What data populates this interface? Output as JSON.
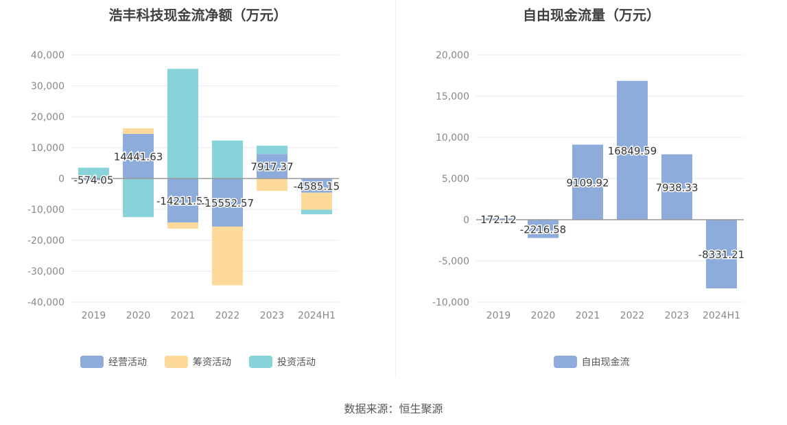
{
  "source_text": "数据来源：恒生聚源",
  "chart_data": [
    {
      "type": "bar",
      "stacked": true,
      "title": "浩丰科技现金流净额（万元）",
      "categories": [
        "2019",
        "2020",
        "2021",
        "2022",
        "2023",
        "2024H1"
      ],
      "ylim": [
        -40000,
        40000
      ],
      "yticks": [
        40000,
        30000,
        20000,
        10000,
        0,
        -10000,
        -20000,
        -30000,
        -40000
      ],
      "ytick_labels": [
        "40,000",
        "30,000",
        "20,000",
        "10,000",
        "0",
        "-10,000",
        "-20,000",
        "-30,000",
        "-40,000"
      ],
      "legend_position": "bottom",
      "grid": true,
      "series": [
        {
          "name": "经营活动",
          "color": "#8eacdb",
          "values": [
            -574.05,
            14441.63,
            -14211.53,
            -15552.57,
            7917.37,
            -4585.15
          ]
        },
        {
          "name": "筹资活动",
          "color": "#fdd99b",
          "values": [
            0,
            1800,
            -2000,
            -19000,
            -4000,
            -5500
          ]
        },
        {
          "name": "投资活动",
          "color": "#88d3d9",
          "values": [
            3500,
            -12500,
            35500,
            12300,
            2700,
            -1500
          ]
        }
      ],
      "data_labels": [
        "-574.05",
        "14441.63",
        "-14211.53",
        "-15552.57",
        "7917.37",
        "-4585.15"
      ],
      "label_series": 0
    },
    {
      "type": "bar",
      "title": "自由现金流量（万元）",
      "categories": [
        "2019",
        "2020",
        "2021",
        "2022",
        "2023",
        "2024H1"
      ],
      "ylim": [
        -10000,
        20000
      ],
      "yticks": [
        20000,
        15000,
        10000,
        5000,
        0,
        -5000,
        -10000
      ],
      "ytick_labels": [
        "20,000",
        "15,000",
        "10,000",
        "5,000",
        "0",
        "-5,000",
        "-10,000"
      ],
      "legend_position": "bottom",
      "grid": true,
      "series": [
        {
          "name": "自由现金流",
          "color": "#8eacdb",
          "values": [
            172.12,
            -2216.58,
            9109.92,
            16849.59,
            7938.33,
            -8331.21
          ]
        }
      ],
      "data_labels": [
        "172.12",
        "-2216.58",
        "9109.92",
        "16849.59",
        "7938.33",
        "-8331.21"
      ],
      "label_series": 0
    }
  ]
}
